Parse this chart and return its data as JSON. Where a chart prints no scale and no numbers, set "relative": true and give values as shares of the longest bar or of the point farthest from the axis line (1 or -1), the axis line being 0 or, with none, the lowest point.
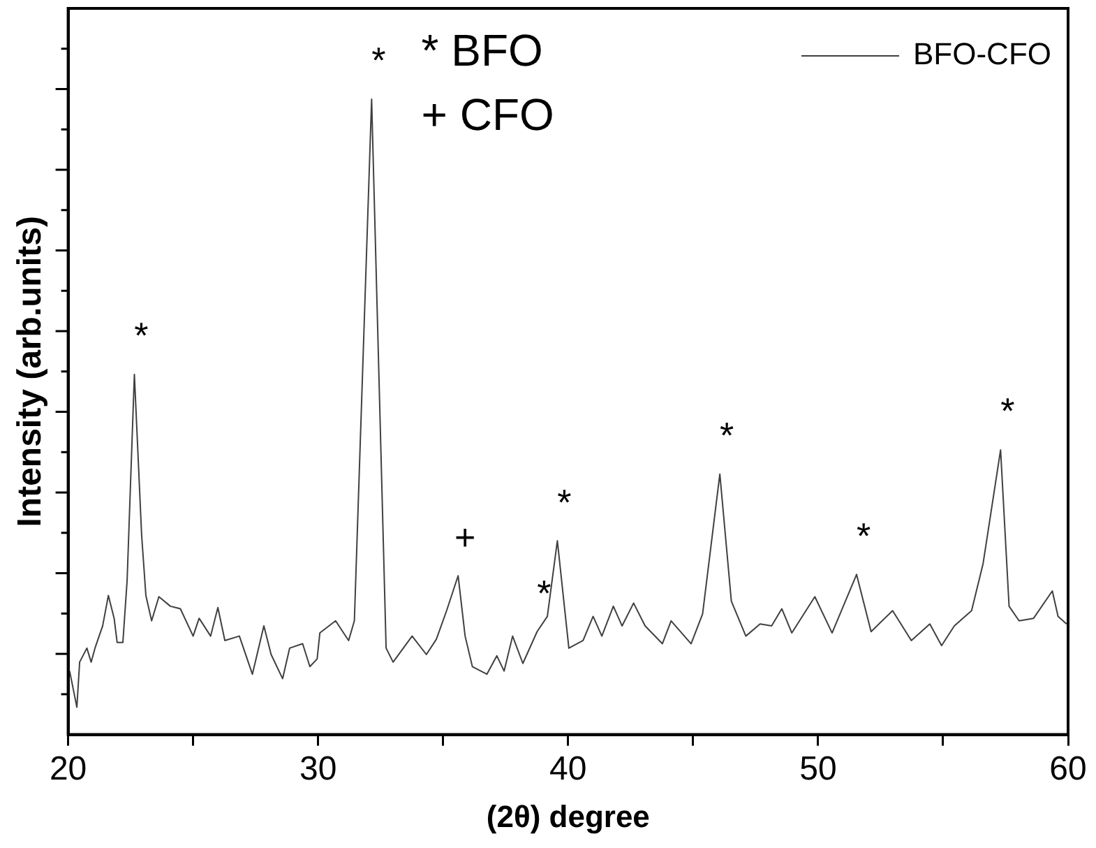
{
  "chart_data": {
    "type": "line",
    "xlabel": "(2θ) degree",
    "ylabel": "Intensity (arb.units)",
    "relative": true,
    "grid": false,
    "legend": "top right",
    "marker": "none",
    "line_style": "solid",
    "xlim": [
      20,
      60
    ],
    "xticks": [
      20,
      {
        "value": 25,
        "label": null
      },
      30,
      {
        "value": 35,
        "label": null
      },
      40,
      {
        "value": 45,
        "label": null
      },
      50,
      {
        "value": 55,
        "label": null
      },
      60
    ],
    "series": [
      {
        "name": "BFO-CFO",
        "color": "#404040",
        "x": [
          20.06,
          20.35,
          20.46,
          20.75,
          20.92,
          21.09,
          21.38,
          21.61,
          21.84,
          21.96,
          22.19,
          22.36,
          22.65,
          22.94,
          23.11,
          23.34,
          23.63,
          24.09,
          24.49,
          25.0,
          25.24,
          25.7,
          25.99,
          26.27,
          26.85,
          27.37,
          27.83,
          28.12,
          28.58,
          28.86,
          29.38,
          29.67,
          29.96,
          30.07,
          30.7,
          31.22,
          31.45,
          32.14,
          32.72,
          33.0,
          33.76,
          34.33,
          34.73,
          35.14,
          35.6,
          35.88,
          36.17,
          36.75,
          37.15,
          37.44,
          37.78,
          38.19,
          38.76,
          39.17,
          39.57,
          40.03,
          40.6,
          41.0,
          41.35,
          41.81,
          42.16,
          42.62,
          43.08,
          43.77,
          44.12,
          44.92,
          45.38,
          46.07,
          46.53,
          47.11,
          47.68,
          48.14,
          48.55,
          48.95,
          49.87,
          50.56,
          51.54,
          52.12,
          52.98,
          53.73,
          54.47,
          54.94,
          55.45,
          56.14,
          56.6,
          57.3,
          57.64,
          58.04,
          58.62,
          59.37,
          59.6,
          59.94
        ],
        "values": [
          0.1,
          0.043,
          0.114,
          0.136,
          0.114,
          0.138,
          0.171,
          0.219,
          0.183,
          0.145,
          0.145,
          0.243,
          0.567,
          0.314,
          0.219,
          0.179,
          0.217,
          0.202,
          0.198,
          0.155,
          0.183,
          0.155,
          0.2,
          0.148,
          0.155,
          0.095,
          0.171,
          0.126,
          0.088,
          0.136,
          0.143,
          0.107,
          0.119,
          0.16,
          0.179,
          0.148,
          0.179,
          1.0,
          0.136,
          0.114,
          0.155,
          0.126,
          0.15,
          0.195,
          0.25,
          0.155,
          0.107,
          0.095,
          0.124,
          0.1,
          0.155,
          0.112,
          0.162,
          0.186,
          0.305,
          0.136,
          0.148,
          0.186,
          0.155,
          0.202,
          0.171,
          0.207,
          0.171,
          0.143,
          0.179,
          0.143,
          0.19,
          0.41,
          0.21,
          0.155,
          0.174,
          0.171,
          0.198,
          0.16,
          0.217,
          0.16,
          0.252,
          0.162,
          0.195,
          0.148,
          0.174,
          0.14,
          0.171,
          0.195,
          0.269,
          0.448,
          0.202,
          0.179,
          0.183,
          0.226,
          0.186,
          0.174
        ]
      }
    ],
    "annotations": [
      {
        "text": "*",
        "x": 22.65,
        "y": 0.567
      },
      {
        "text": "*",
        "x": 32.14,
        "y": 1.0
      },
      {
        "text": "+",
        "x": 35.6,
        "y": 0.25
      },
      {
        "text": "*",
        "x": 38.76,
        "y": 0.162
      },
      {
        "text": "*",
        "x": 39.57,
        "y": 0.305
      },
      {
        "text": "*",
        "x": 46.07,
        "y": 0.41
      },
      {
        "text": "*",
        "x": 51.54,
        "y": 0.252
      },
      {
        "text": "*",
        "x": 57.3,
        "y": 0.448
      },
      "* BFO",
      "+ CFO"
    ]
  }
}
